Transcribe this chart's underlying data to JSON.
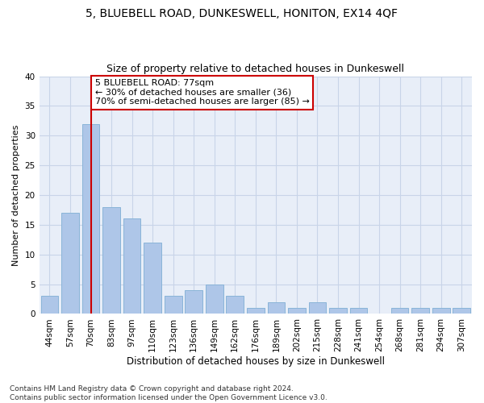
{
  "title1": "5, BLUEBELL ROAD, DUNKESWELL, HONITON, EX14 4QF",
  "title2": "Size of property relative to detached houses in Dunkeswell",
  "xlabel": "Distribution of detached houses by size in Dunkeswell",
  "ylabel": "Number of detached properties",
  "categories": [
    "44sqm",
    "57sqm",
    "70sqm",
    "83sqm",
    "97sqm",
    "110sqm",
    "123sqm",
    "136sqm",
    "149sqm",
    "162sqm",
    "176sqm",
    "189sqm",
    "202sqm",
    "215sqm",
    "228sqm",
    "241sqm",
    "254sqm",
    "268sqm",
    "281sqm",
    "294sqm",
    "307sqm"
  ],
  "values": [
    3,
    17,
    32,
    18,
    16,
    12,
    3,
    4,
    5,
    3,
    1,
    2,
    1,
    2,
    1,
    1,
    0,
    1,
    1,
    1,
    1
  ],
  "bar_color": "#aec6e8",
  "bar_edge_color": "#8ab4d8",
  "vline_x_index": 2,
  "vline_color": "#cc0000",
  "annotation_line1": "5 BLUEBELL ROAD: 77sqm",
  "annotation_line2": "← 30% of detached houses are smaller (36)",
  "annotation_line3": "70% of semi-detached houses are larger (85) →",
  "annotation_box_color": "#ffffff",
  "annotation_box_edgecolor": "#cc0000",
  "ylim": [
    0,
    40
  ],
  "yticks": [
    0,
    5,
    10,
    15,
    20,
    25,
    30,
    35,
    40
  ],
  "grid_color": "#c8d4e8",
  "bg_color": "#e8eef8",
  "footer_line1": "Contains HM Land Registry data © Crown copyright and database right 2024.",
  "footer_line2": "Contains public sector information licensed under the Open Government Licence v3.0.",
  "title1_fontsize": 10,
  "title2_fontsize": 9,
  "xlabel_fontsize": 8.5,
  "ylabel_fontsize": 8,
  "tick_fontsize": 7.5,
  "annotation_fontsize": 8,
  "footer_fontsize": 6.5
}
